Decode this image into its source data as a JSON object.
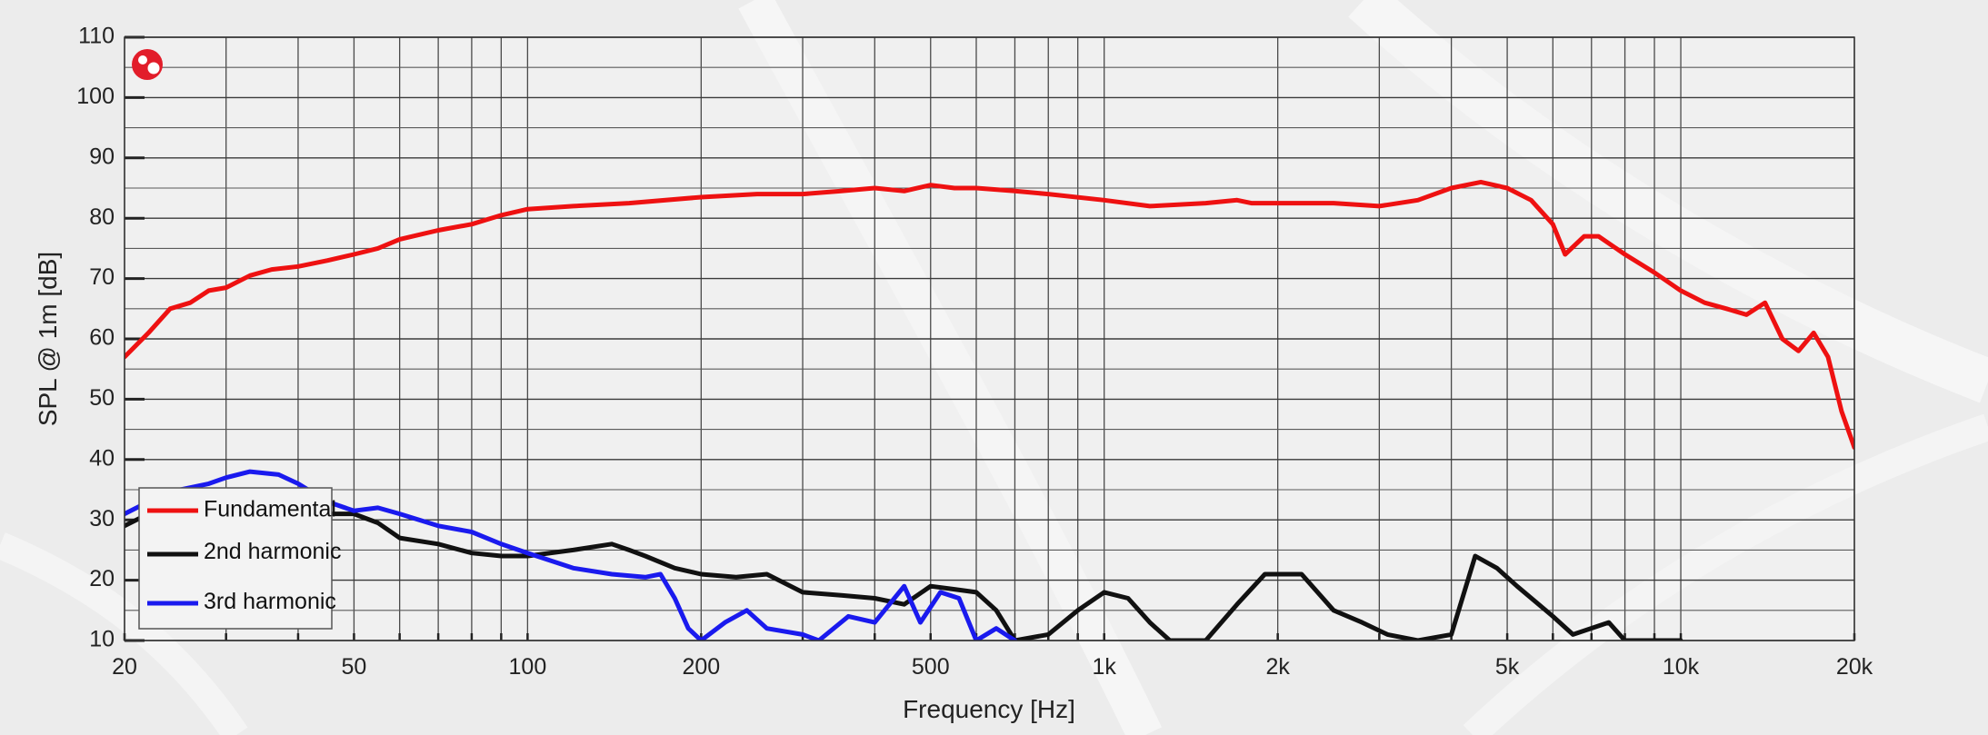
{
  "chart_data": {
    "type": "line",
    "xlabel": "Frequency [Hz]",
    "ylabel": "SPL @ 1m [dB]",
    "x_scale": "log",
    "xlim": [
      20,
      20000
    ],
    "ylim": [
      10,
      110
    ],
    "grid": true,
    "legend_position": "bottom-left",
    "x_ticks": [
      {
        "value": 20,
        "label": "20"
      },
      {
        "value": 50,
        "label": "50"
      },
      {
        "value": 100,
        "label": "100"
      },
      {
        "value": 200,
        "label": "200"
      },
      {
        "value": 500,
        "label": "500"
      },
      {
        "value": 1000,
        "label": "1k"
      },
      {
        "value": 2000,
        "label": "2k"
      },
      {
        "value": 5000,
        "label": "5k"
      },
      {
        "value": 10000,
        "label": "10k"
      },
      {
        "value": 20000,
        "label": "20k"
      }
    ],
    "y_ticks": [
      10,
      20,
      30,
      40,
      50,
      60,
      70,
      80,
      90,
      100,
      110
    ],
    "series": [
      {
        "name": "Fundamental",
        "color": "#ee1111",
        "points": [
          [
            20,
            57
          ],
          [
            22,
            61
          ],
          [
            24,
            65
          ],
          [
            26,
            66
          ],
          [
            28,
            68
          ],
          [
            30,
            68.5
          ],
          [
            33,
            70.5
          ],
          [
            36,
            71.5
          ],
          [
            40,
            72
          ],
          [
            45,
            73
          ],
          [
            50,
            74
          ],
          [
            55,
            75
          ],
          [
            60,
            76.5
          ],
          [
            70,
            78
          ],
          [
            80,
            79
          ],
          [
            90,
            80.5
          ],
          [
            100,
            81.5
          ],
          [
            120,
            82
          ],
          [
            150,
            82.5
          ],
          [
            200,
            83.5
          ],
          [
            250,
            84
          ],
          [
            300,
            84
          ],
          [
            350,
            84.5
          ],
          [
            400,
            85
          ],
          [
            450,
            84.5
          ],
          [
            500,
            85.5
          ],
          [
            550,
            85
          ],
          [
            600,
            85
          ],
          [
            700,
            84.5
          ],
          [
            800,
            84
          ],
          [
            1000,
            83
          ],
          [
            1200,
            82
          ],
          [
            1500,
            82.5
          ],
          [
            1700,
            83
          ],
          [
            1800,
            82.5
          ],
          [
            2000,
            82.5
          ],
          [
            2500,
            82.5
          ],
          [
            3000,
            82
          ],
          [
            3500,
            83
          ],
          [
            4000,
            85
          ],
          [
            4500,
            86
          ],
          [
            5000,
            85
          ],
          [
            5500,
            83
          ],
          [
            6000,
            79
          ],
          [
            6300,
            74
          ],
          [
            6800,
            77
          ],
          [
            7200,
            77
          ],
          [
            8000,
            74
          ],
          [
            9000,
            71
          ],
          [
            10000,
            68
          ],
          [
            11000,
            66
          ],
          [
            12000,
            65
          ],
          [
            13000,
            64
          ],
          [
            14000,
            66
          ],
          [
            15000,
            60
          ],
          [
            16000,
            58
          ],
          [
            17000,
            61
          ],
          [
            18000,
            57
          ],
          [
            19000,
            48
          ],
          [
            20000,
            42
          ]
        ]
      },
      {
        "name": "2nd harmonic",
        "color": "#111111",
        "points": [
          [
            20,
            29
          ],
          [
            22,
            31
          ],
          [
            25,
            30
          ],
          [
            30,
            31
          ],
          [
            35,
            32
          ],
          [
            40,
            31.5
          ],
          [
            45,
            31
          ],
          [
            50,
            31
          ],
          [
            55,
            29.5
          ],
          [
            60,
            27
          ],
          [
            70,
            26
          ],
          [
            80,
            24.5
          ],
          [
            90,
            24
          ],
          [
            100,
            24
          ],
          [
            120,
            25
          ],
          [
            140,
            26
          ],
          [
            150,
            25
          ],
          [
            160,
            24
          ],
          [
            180,
            22
          ],
          [
            200,
            21
          ],
          [
            230,
            20.5
          ],
          [
            260,
            21
          ],
          [
            300,
            18
          ],
          [
            350,
            17.5
          ],
          [
            400,
            17
          ],
          [
            450,
            16
          ],
          [
            500,
            19
          ],
          [
            550,
            18.5
          ],
          [
            600,
            18
          ],
          [
            650,
            15
          ],
          [
            700,
            10
          ],
          [
            800,
            11
          ],
          [
            900,
            15
          ],
          [
            1000,
            18
          ],
          [
            1100,
            17
          ],
          [
            1200,
            13
          ],
          [
            1300,
            10
          ],
          [
            1500,
            10
          ],
          [
            1700,
            16
          ],
          [
            1900,
            21
          ],
          [
            2200,
            21
          ],
          [
            2500,
            15
          ],
          [
            2800,
            13
          ],
          [
            3100,
            11
          ],
          [
            3500,
            10
          ],
          [
            4000,
            11
          ],
          [
            4400,
            24
          ],
          [
            4800,
            22
          ],
          [
            5200,
            19
          ],
          [
            6000,
            14
          ],
          [
            6500,
            11
          ],
          [
            7500,
            13
          ],
          [
            8000,
            10
          ],
          [
            10000,
            10
          ]
        ]
      },
      {
        "name": "3rd harmonic",
        "color": "#1a1aee",
        "points": [
          [
            20,
            31
          ],
          [
            22,
            33
          ],
          [
            25,
            35
          ],
          [
            28,
            36
          ],
          [
            30,
            37
          ],
          [
            33,
            38
          ],
          [
            37,
            37.5
          ],
          [
            40,
            36
          ],
          [
            45,
            33
          ],
          [
            50,
            31.5
          ],
          [
            55,
            32
          ],
          [
            60,
            31
          ],
          [
            70,
            29
          ],
          [
            80,
            28
          ],
          [
            90,
            26
          ],
          [
            100,
            24.5
          ],
          [
            120,
            22
          ],
          [
            140,
            21
          ],
          [
            160,
            20.5
          ],
          [
            170,
            21
          ],
          [
            180,
            17
          ],
          [
            190,
            12
          ],
          [
            200,
            10
          ],
          [
            220,
            13
          ],
          [
            240,
            15
          ],
          [
            260,
            12
          ],
          [
            300,
            11
          ],
          [
            320,
            10
          ],
          [
            360,
            14
          ],
          [
            400,
            13
          ],
          [
            450,
            19
          ],
          [
            480,
            13
          ],
          [
            520,
            18
          ],
          [
            560,
            17
          ],
          [
            600,
            10
          ],
          [
            650,
            12
          ],
          [
            700,
            10
          ]
        ]
      }
    ]
  }
}
